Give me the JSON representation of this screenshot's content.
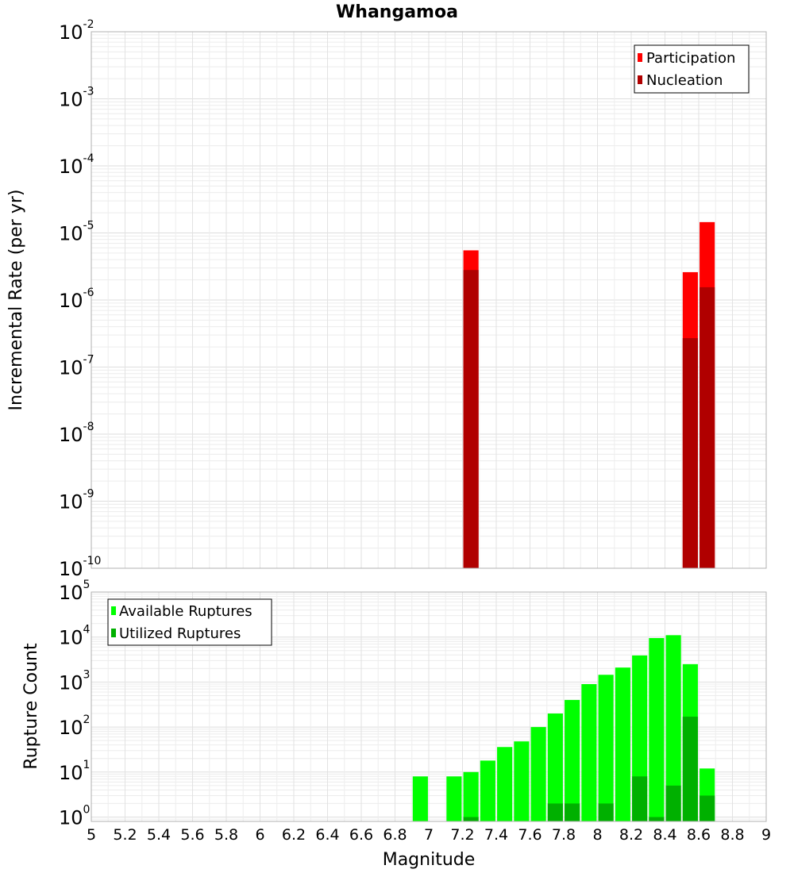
{
  "chart_data": [
    {
      "id": "rate",
      "type": "bar",
      "title": "Whangamoa",
      "ylabel": "Incremental Rate (per yr)",
      "yscale": "log",
      "ylim": [
        1e-10,
        0.01
      ],
      "xlim": [
        5,
        9
      ],
      "grid": true,
      "legend_position": "top-right",
      "legend": [
        "Participation",
        "Nucleation"
      ],
      "ytick_exponents": [
        "-10",
        "-9",
        "-8",
        "-7",
        "-6",
        "-5",
        "-4",
        "-3",
        "-2"
      ],
      "series": [
        {
          "name": "Participation",
          "color": "#ff0000",
          "x": [
            7.25,
            8.55,
            8.65
          ],
          "values": [
            5.5e-06,
            2.6e-06,
            1.45e-05
          ]
        },
        {
          "name": "Nucleation",
          "color": "#b00000",
          "x": [
            7.25,
            8.55,
            8.65
          ],
          "values": [
            2.8e-06,
            2.7e-07,
            1.55e-06
          ]
        }
      ]
    },
    {
      "id": "count",
      "type": "bar",
      "xlabel": "Magnitude",
      "ylabel": "Rupture Count",
      "yscale": "log",
      "ylim": [
        0.8,
        100000
      ],
      "xlim": [
        5,
        9
      ],
      "grid": true,
      "legend_position": "top-left",
      "legend": [
        "Available Ruptures",
        "Utilized Ruptures"
      ],
      "ytick_exponents": [
        "0",
        "1",
        "2",
        "3",
        "4",
        "5"
      ],
      "xtick_labels": [
        "5",
        "5.2",
        "5.4",
        "5.6",
        "5.8",
        "6",
        "6.2",
        "6.4",
        "6.6",
        "6.8",
        "7",
        "7.2",
        "7.4",
        "7.6",
        "7.8",
        "8",
        "8.2",
        "8.4",
        "8.6",
        "8.8",
        "9"
      ],
      "series": [
        {
          "name": "Available Ruptures",
          "color": "#00ff00",
          "x": [
            6.95,
            7.15,
            7.25,
            7.35,
            7.45,
            7.55,
            7.65,
            7.75,
            7.85,
            7.95,
            8.05,
            8.15,
            8.25,
            8.35,
            8.45,
            8.55,
            8.65
          ],
          "values": [
            8,
            8,
            10,
            18,
            36,
            48,
            100,
            200,
            400,
            900,
            1450,
            2100,
            3900,
            9500,
            11000,
            2500,
            12
          ]
        },
        {
          "name": "Utilized Ruptures",
          "color": "#00b000",
          "x": [
            7.25,
            7.75,
            7.85,
            8.05,
            8.25,
            8.35,
            8.45,
            8.55,
            8.65
          ],
          "values": [
            1,
            2,
            2,
            2,
            8,
            1,
            5,
            170,
            3
          ]
        }
      ]
    }
  ]
}
